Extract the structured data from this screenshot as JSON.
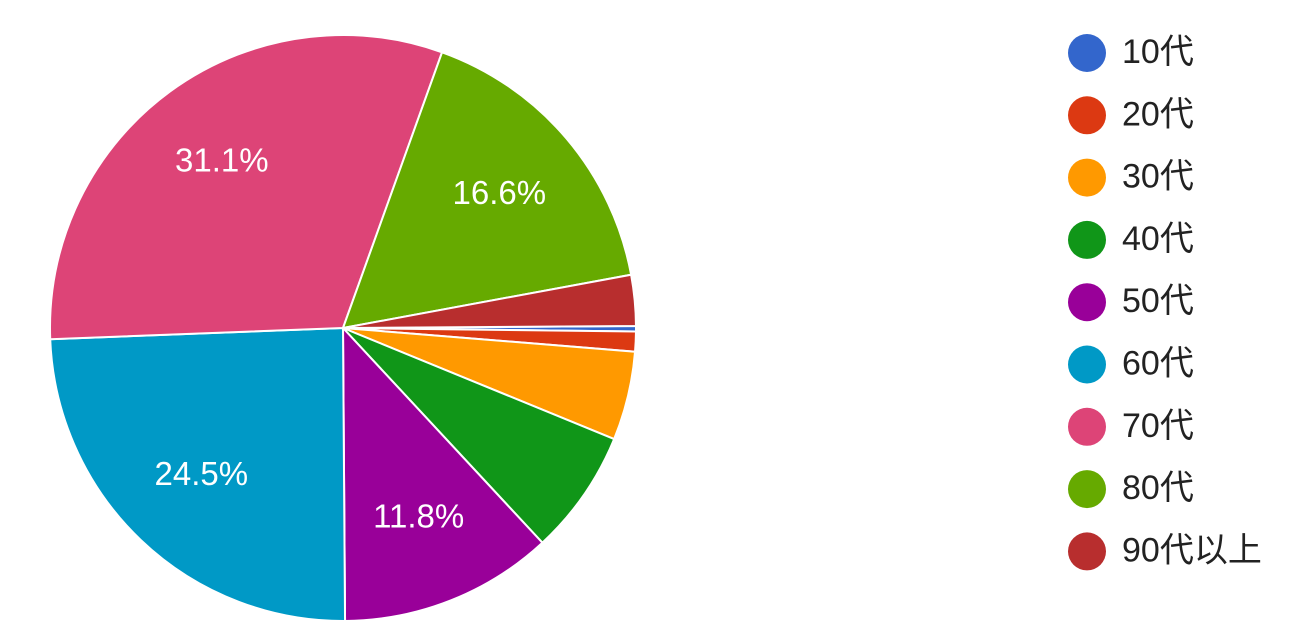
{
  "chart_data": {
    "type": "pie",
    "categories": [
      "10代",
      "20代",
      "30代",
      "40代",
      "50代",
      "60代",
      "70代",
      "80代",
      "90代以上"
    ],
    "values": [
      0.3,
      1.1,
      4.9,
      6.9,
      11.8,
      24.5,
      31.1,
      16.6,
      2.8
    ],
    "value_labels": [
      null,
      null,
      null,
      null,
      "11.8%",
      "24.5%",
      "31.1%",
      "16.6%",
      null
    ],
    "colors": [
      "#3366cc",
      "#dc3912",
      "#ff9900",
      "#109618",
      "#990099",
      "#0099c6",
      "#dd4477",
      "#66aa00",
      "#b82e2e"
    ],
    "legend": "right"
  }
}
